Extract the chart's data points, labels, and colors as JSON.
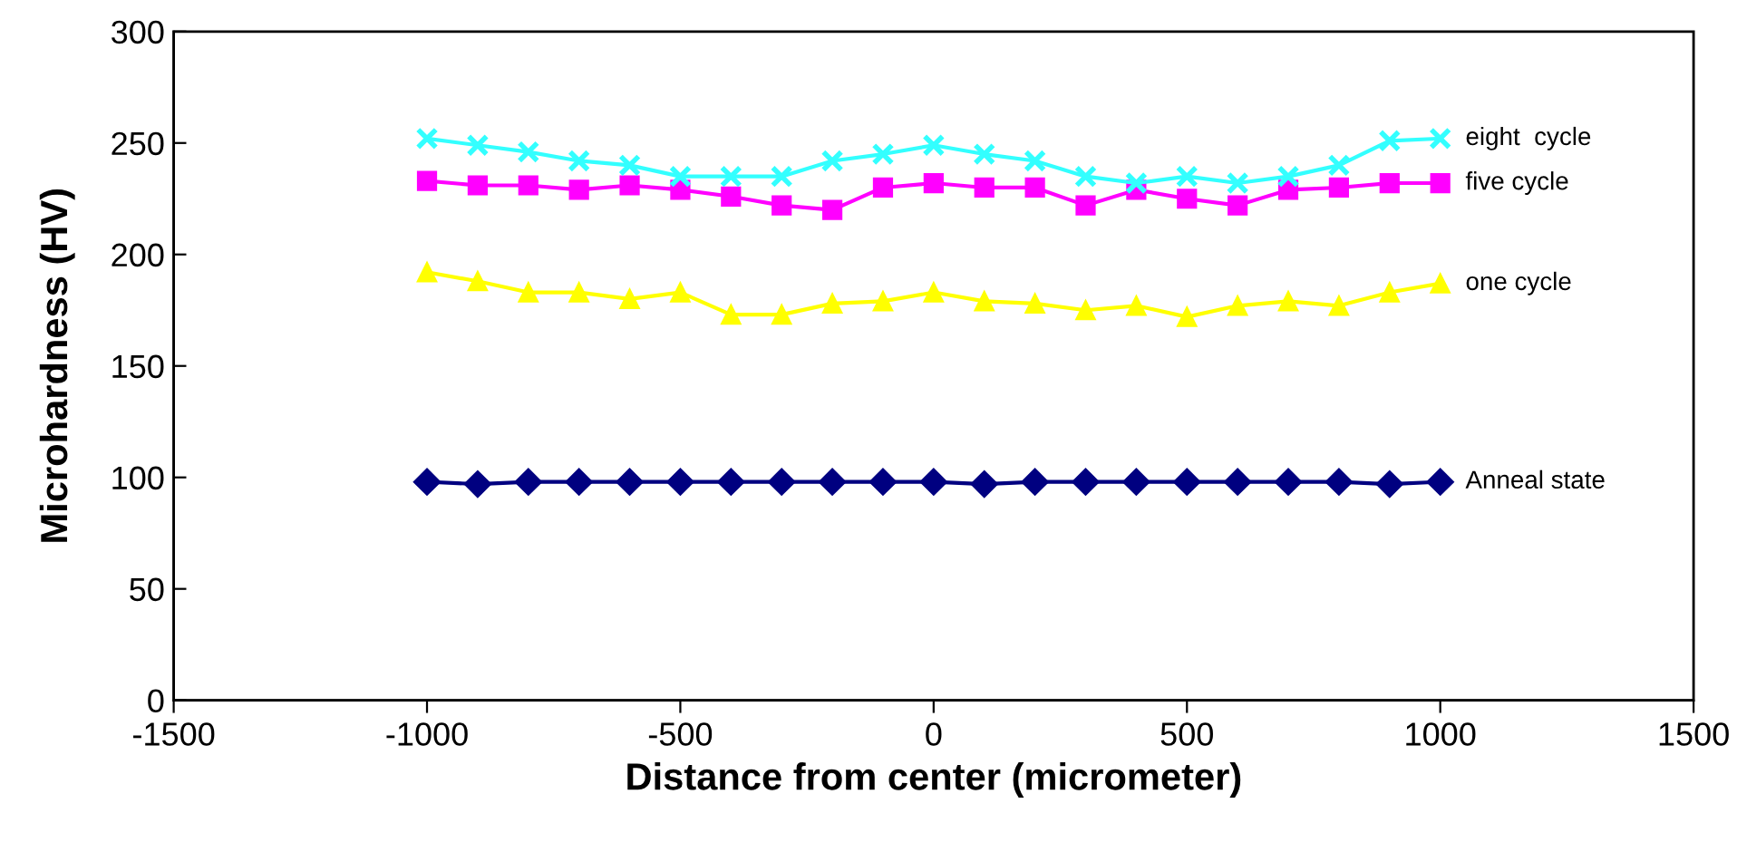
{
  "chart_data": {
    "type": "line",
    "xlabel": "Distance from center (micrometer)",
    "ylabel": "Microhardness (HV)",
    "x": [
      -1000,
      -900,
      -800,
      -700,
      -600,
      -500,
      -400,
      -300,
      -200,
      -100,
      0,
      100,
      200,
      300,
      400,
      500,
      600,
      700,
      800,
      900,
      1000
    ],
    "xlim": [
      -1500,
      1500
    ],
    "xticks": [
      -1500,
      -1000,
      -500,
      0,
      500,
      1000,
      1500
    ],
    "ylim": [
      0,
      300
    ],
    "yticks": [
      0,
      50,
      100,
      150,
      200,
      250,
      300
    ],
    "grid": false,
    "legend": false,
    "series": [
      {
        "name": "eight  cycle",
        "color": "#33ffff",
        "marker": "cross",
        "values": [
          252,
          249,
          246,
          242,
          240,
          235,
          235,
          235,
          242,
          245,
          249,
          245,
          242,
          235,
          232,
          235,
          232,
          235,
          240,
          251,
          252
        ]
      },
      {
        "name": "five cycle",
        "color": "#ff00ff",
        "marker": "square",
        "values": [
          233,
          231,
          231,
          229,
          231,
          229,
          226,
          222,
          220,
          230,
          232,
          230,
          230,
          222,
          229,
          225,
          222,
          229,
          230,
          232,
          232
        ]
      },
      {
        "name": "one cycle",
        "color": "#ffff00",
        "marker": "triangle",
        "values": [
          192,
          188,
          183,
          183,
          180,
          183,
          173,
          173,
          178,
          179,
          183,
          179,
          178,
          175,
          177,
          172,
          177,
          179,
          177,
          183,
          187
        ]
      },
      {
        "name": "Anneal state",
        "color": "#000080",
        "marker": "diamond",
        "values": [
          98,
          97,
          98,
          98,
          98,
          98,
          98,
          98,
          98,
          98,
          98,
          97,
          98,
          98,
          98,
          98,
          98,
          98,
          98,
          97,
          98
        ]
      }
    ]
  }
}
